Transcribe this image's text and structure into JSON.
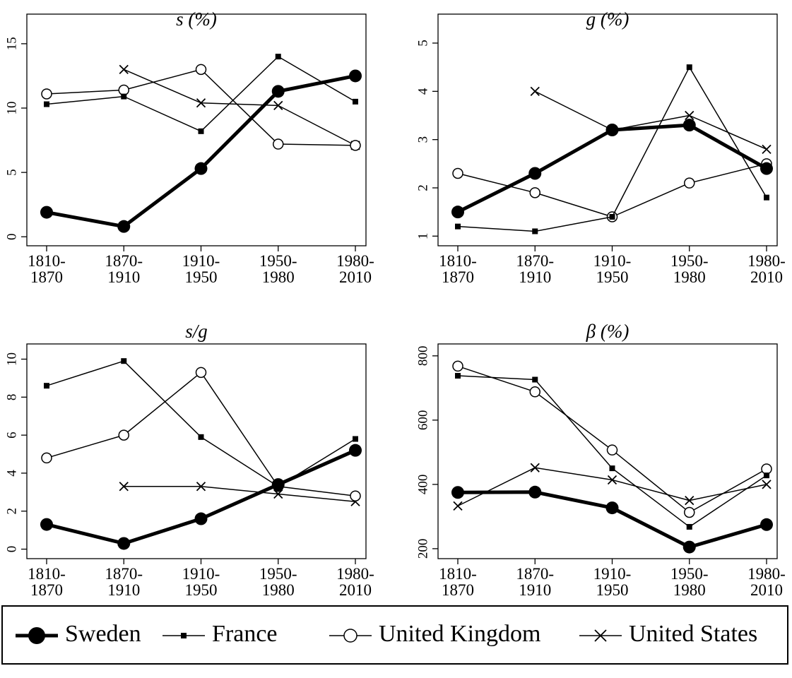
{
  "legend": [
    {
      "name": "Sweden",
      "color": "#000000",
      "marker": "circle-filled",
      "line_width": 5
    },
    {
      "name": "France",
      "color": "#000000",
      "marker": "square",
      "line_width": 1.5
    },
    {
      "name": "United Kingdom",
      "color": "#000000",
      "marker": "circle-open",
      "line_width": 1.5
    },
    {
      "name": "United States",
      "color": "#000000",
      "marker": "x",
      "line_width": 1.5
    }
  ],
  "chart_data": [
    {
      "type": "line",
      "title": "s (%)",
      "categories": [
        [
          "1810-",
          "1870"
        ],
        [
          "1870-",
          "1910"
        ],
        [
          "1910-",
          "1950"
        ],
        [
          "1950-",
          "1980"
        ],
        [
          "1980-",
          "2010"
        ]
      ],
      "ylim": [
        -0.7,
        17.3
      ],
      "yticks": [
        0,
        5,
        10,
        15
      ],
      "grid": false,
      "series": [
        {
          "values": [
            1.9,
            0.8,
            5.3,
            11.3,
            12.5
          ]
        },
        {
          "values": [
            10.3,
            10.9,
            8.2,
            14.0,
            10.5
          ]
        },
        {
          "values": [
            11.1,
            11.4,
            13.0,
            7.2,
            7.1
          ]
        },
        {
          "values": [
            null,
            13.0,
            10.4,
            10.2,
            7.1
          ]
        }
      ]
    },
    {
      "type": "line",
      "title": "g (%)",
      "categories": [
        [
          "1810-",
          "1870"
        ],
        [
          "1870-",
          "1910"
        ],
        [
          "1910-",
          "1950"
        ],
        [
          "1950-",
          "1980"
        ],
        [
          "1980-",
          "2010"
        ]
      ],
      "ylim": [
        0.8,
        5.6
      ],
      "yticks": [
        1,
        2,
        3,
        4,
        5
      ],
      "grid": false,
      "series": [
        {
          "values": [
            1.5,
            2.3,
            3.2,
            3.3,
            2.4
          ]
        },
        {
          "values": [
            1.2,
            1.1,
            1.4,
            4.5,
            1.8
          ]
        },
        {
          "values": [
            2.3,
            1.9,
            1.4,
            2.1,
            2.5
          ]
        },
        {
          "values": [
            null,
            4.0,
            3.2,
            3.5,
            2.8
          ]
        }
      ]
    },
    {
      "type": "line",
      "title": "s/g",
      "categories": [
        [
          "1810-",
          "1870"
        ],
        [
          "1870-",
          "1910"
        ],
        [
          "1910-",
          "1950"
        ],
        [
          "1950-",
          "1980"
        ],
        [
          "1980-",
          "2010"
        ]
      ],
      "ylim": [
        -0.5,
        10.8
      ],
      "yticks": [
        0,
        2,
        4,
        6,
        8,
        10
      ],
      "grid": false,
      "series": [
        {
          "values": [
            1.3,
            0.3,
            1.6,
            3.4,
            5.2
          ]
        },
        {
          "values": [
            8.6,
            9.9,
            5.9,
            3.3,
            5.8
          ]
        },
        {
          "values": [
            4.8,
            6.0,
            9.3,
            3.3,
            2.8
          ]
        },
        {
          "values": [
            null,
            3.3,
            3.3,
            2.9,
            2.5
          ]
        }
      ]
    },
    {
      "type": "line",
      "title": "β (%)",
      "categories": [
        [
          "1810-",
          "1870"
        ],
        [
          "1870-",
          "1910"
        ],
        [
          "1910-",
          "1950"
        ],
        [
          "1950-",
          "1980"
        ],
        [
          "1980-",
          "2010"
        ]
      ],
      "ylim": [
        169,
        837
      ],
      "yticks": [
        200,
        400,
        600,
        800
      ],
      "grid": false,
      "series": [
        {
          "values": [
            375,
            376,
            327,
            205,
            275
          ]
        },
        {
          "values": [
            738,
            726,
            450,
            268,
            428
          ]
        },
        {
          "values": [
            768,
            688,
            507,
            313,
            448
          ]
        },
        {
          "values": [
            333,
            452,
            414,
            350,
            400
          ]
        }
      ]
    }
  ]
}
